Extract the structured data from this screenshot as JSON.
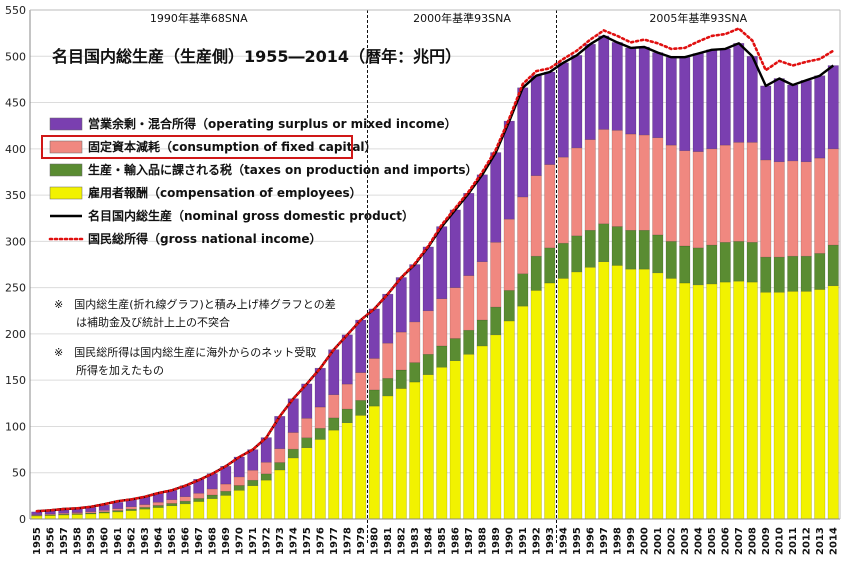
{
  "chart_data": {
    "type": "bar",
    "stacked": true,
    "title": "名目国内総生産（生産側）1955―2014（暦年：兆円）",
    "ylim": [
      0,
      550
    ],
    "yticks": [
      0,
      50,
      100,
      150,
      200,
      250,
      300,
      350,
      400,
      450,
      500,
      550
    ],
    "grid": true,
    "legend_placement": "top-left",
    "eras": [
      {
        "label": "1990年基準68SNA",
        "start": "1955",
        "end": "1979"
      },
      {
        "label": "2000年基準93SNA",
        "start": "1980",
        "end": "1993"
      },
      {
        "label": "2005年基準93SNA",
        "start": "1994",
        "end": "2014"
      }
    ],
    "categories": [
      "1955",
      "1956",
      "1957",
      "1958",
      "1959",
      "1960",
      "1961",
      "1962",
      "1963",
      "1964",
      "1965",
      "1966",
      "1967",
      "1968",
      "1969",
      "1970",
      "1971",
      "1972",
      "1973",
      "1974",
      "1975",
      "1976",
      "1977",
      "1978",
      "1979",
      "1980",
      "1981",
      "1982",
      "1983",
      "1984",
      "1985",
      "1986",
      "1987",
      "1988",
      "1989",
      "1990",
      "1991",
      "1992",
      "1993",
      "1994",
      "1995",
      "1996",
      "1997",
      "1998",
      "1999",
      "2000",
      "2001",
      "2002",
      "2003",
      "2004",
      "2005",
      "2006",
      "2007",
      "2008",
      "2009",
      "2010",
      "2011",
      "2012",
      "2013",
      "2014"
    ],
    "series": [
      {
        "name": "雇用者報酬（compensation of employees）",
        "color": "#f2f200",
        "values": [
          3.3,
          3.8,
          4.4,
          4.9,
          5.5,
          6.5,
          7.7,
          9.1,
          10.7,
          12.4,
          14.3,
          16.4,
          18.9,
          22.0,
          25.5,
          31.0,
          36.0,
          42.0,
          53.0,
          66.0,
          77.0,
          86.0,
          96.0,
          104.0,
          112.0,
          122.0,
          133.0,
          141.0,
          148.0,
          156.0,
          164.0,
          171.0,
          178.0,
          187.0,
          199.0,
          214.0,
          230.0,
          247.0,
          255.0,
          260.0,
          267.0,
          272.0,
          278.0,
          274.0,
          270.0,
          270.0,
          266.0,
          260.0,
          255.0,
          253.0,
          254.0,
          256.0,
          257.0,
          256.0,
          245.0,
          245.0,
          246.0,
          246.0,
          248.0,
          252.0
        ]
      },
      {
        "name": "生産・輸入品に課される税（taxes on production and imports）",
        "color": "#5a8c32",
        "values": [
          0.6,
          0.7,
          0.8,
          0.9,
          1.0,
          1.2,
          1.4,
          1.6,
          1.9,
          2.2,
          2.5,
          2.9,
          3.3,
          3.9,
          4.5,
          5.2,
          5.9,
          6.8,
          8.0,
          9.5,
          10.8,
          12.0,
          13.3,
          14.8,
          16.2,
          17.5,
          19.0,
          20.0,
          21.0,
          22.0,
          23.0,
          24.0,
          26.0,
          28.0,
          30.0,
          33.0,
          35.0,
          37.0,
          38.0,
          38.0,
          39.0,
          40.0,
          41.0,
          42.0,
          42.0,
          42.0,
          41.0,
          40.0,
          40.0,
          40.0,
          42.0,
          43.0,
          43.0,
          43.0,
          38.0,
          38.0,
          38.0,
          38.0,
          39.0,
          44.0
        ]
      },
      {
        "name": "固定資本減耗（consumption of fixed capital）",
        "color": "#f08880",
        "values": [
          0.8,
          0.9,
          1.1,
          1.2,
          1.4,
          1.7,
          2.1,
          2.5,
          3.0,
          3.5,
          4.1,
          4.8,
          5.6,
          6.6,
          7.8,
          9.3,
          10.8,
          12.5,
          15.0,
          18.0,
          21.0,
          23.0,
          25.0,
          27.0,
          30.0,
          34.0,
          38.0,
          41.0,
          44.0,
          47.0,
          51.0,
          55.0,
          59.0,
          63.0,
          70.0,
          77.0,
          83.0,
          87.0,
          90.0,
          93.0,
          95.0,
          98.0,
          102.0,
          104.0,
          104.0,
          103.0,
          105.0,
          104.0,
          103.0,
          104.0,
          104.0,
          105.0,
          107.0,
          108.0,
          105.0,
          103.0,
          103.0,
          102.0,
          103.0,
          104.0
        ]
      },
      {
        "name": "営業余剰・混合所得（operating surplus or mixed income）",
        "color": "#7a3fb0",
        "values": [
          3.0,
          3.4,
          3.7,
          4.0,
          4.6,
          5.6,
          6.8,
          7.6,
          8.4,
          9.9,
          10.1,
          11.9,
          15.2,
          16.5,
          19.2,
          21.5,
          22.3,
          26.7,
          35.0,
          36.5,
          37.2,
          42.0,
          48.7,
          53.2,
          56.8,
          53.5,
          53.0,
          59.0,
          62.0,
          69.0,
          78.0,
          84.0,
          89.0,
          94.0,
          97.0,
          106.0,
          118.0,
          108.0,
          100.0,
          102.0,
          100.0,
          103.0,
          101.0,
          95.0,
          93.0,
          95.0,
          92.0,
          95.0,
          101.0,
          106.0,
          107.0,
          104.0,
          107.0,
          93.0,
          80.0,
          90.0,
          82.0,
          88.0,
          89.0,
          90.0
        ]
      }
    ],
    "lines": [
      {
        "name": "名目国内総生産（nominal gross domestic product）",
        "color": "#000000",
        "style": "solid",
        "values": [
          8.4,
          9.4,
          10.8,
          11.6,
          13.2,
          16.0,
          19.2,
          21.2,
          24.0,
          28.0,
          31.0,
          36.0,
          42.0,
          48.8,
          57.0,
          67.0,
          75.0,
          88.0,
          111.0,
          130.0,
          146.0,
          163.0,
          183.0,
          199.0,
          215.0,
          227.0,
          243.0,
          261.0,
          275.0,
          294.0,
          316.0,
          334.0,
          352.0,
          372.0,
          396.0,
          430.0,
          466.0,
          479.0,
          483.0,
          493.0,
          501.0,
          513.0,
          522.0,
          515.0,
          509.0,
          510.0,
          504.0,
          499.0,
          499.0,
          503.0,
          507.0,
          508.0,
          514.0,
          500.0,
          468.0,
          476.0,
          469.0,
          474.0,
          479.0,
          490.0
        ]
      },
      {
        "name": "国民総所得（gross national income）",
        "color": "#e01010",
        "style": "dotted",
        "values": [
          8.4,
          9.4,
          10.8,
          11.6,
          13.2,
          16.0,
          19.2,
          21.2,
          24.0,
          28.0,
          31.0,
          36.0,
          42.0,
          48.8,
          57.0,
          67.0,
          75.0,
          88.0,
          111.0,
          130.0,
          146.0,
          163.0,
          183.0,
          199.0,
          215.0,
          227.0,
          243.0,
          261.0,
          276.0,
          295.0,
          318.0,
          336.0,
          354.0,
          375.0,
          399.0,
          433.0,
          470.0,
          484.0,
          487.0,
          497.0,
          506.0,
          518.0,
          528.0,
          522.0,
          515.0,
          518.0,
          514.0,
          508.0,
          509.0,
          516.0,
          522.0,
          524.0,
          530.0,
          517.0,
          485.0,
          495.0,
          490.0,
          494.0,
          497.0,
          506.0
        ]
      }
    ],
    "legend": [
      {
        "label": "営業余剰・混合所得（operating surplus or mixed income）",
        "kind": "bar",
        "color": "#7a3fb0",
        "highlight": false
      },
      {
        "label": "固定資本減耗（consumption of fixed capital）",
        "kind": "bar",
        "color": "#f08880",
        "highlight": true
      },
      {
        "label": "生産・輸入品に課される税（taxes on production and imports）",
        "kind": "bar",
        "color": "#5a8c32",
        "highlight": false
      },
      {
        "label": "雇用者報酬（compensation of employees）",
        "kind": "bar",
        "color": "#f2f200",
        "highlight": false
      },
      {
        "label": "名目国内総生産（nominal gross domestic product）",
        "kind": "line",
        "color": "#000000",
        "highlight": false
      },
      {
        "label": "国民総所得（gross national income）",
        "kind": "dotted",
        "color": "#e01010",
        "highlight": false
      }
    ],
    "notes": [
      "※　国内総生産(折れ線グラフ)と積み上げ棒グラフとの差",
      "　　は補助金及び統計上上の不突合",
      "※　国民総所得は国内総生産に海外からのネット受取",
      "　　所得を加えたもの"
    ]
  }
}
